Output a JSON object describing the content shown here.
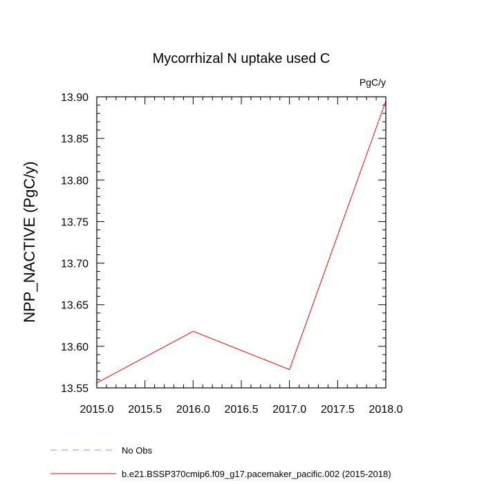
{
  "chart_data": {
    "type": "line",
    "title": "Mycorrhizal N uptake used C",
    "units": "PgC/y",
    "xlabel": "",
    "ylabel": "NPP_NACTIVE  (PgC/y)",
    "xlim": [
      2015.0,
      2018.0
    ],
    "ylim": [
      13.55,
      13.9
    ],
    "x_ticks": [
      "2015.0",
      "2015.5",
      "2016.0",
      "2016.5",
      "2017.0",
      "2017.5",
      "2018.0"
    ],
    "y_ticks": [
      "13.55",
      "13.60",
      "13.65",
      "13.70",
      "13.75",
      "13.80",
      "13.85",
      "13.90"
    ],
    "grid": false,
    "legend_position": "bottom",
    "series": [
      {
        "name": "b.e21.BSSP370cmip6.f09_g17.pacemaker_pacific.002 (2015-2018)",
        "color": "#ff0000",
        "dash": "solid",
        "x": [
          2015.0,
          2016.0,
          2017.0,
          2018.0
        ],
        "y": [
          13.556,
          13.618,
          13.572,
          13.895
        ]
      }
    ],
    "legend": [
      {
        "label": "No Obs",
        "color": "#8a8aff",
        "dash": "dashed"
      },
      {
        "label": "b.e21.BSSP370cmip6.f09_g17.pacemaker_pacific.002 (2015-2018)",
        "color": "#ff0000",
        "dash": "solid"
      }
    ]
  }
}
